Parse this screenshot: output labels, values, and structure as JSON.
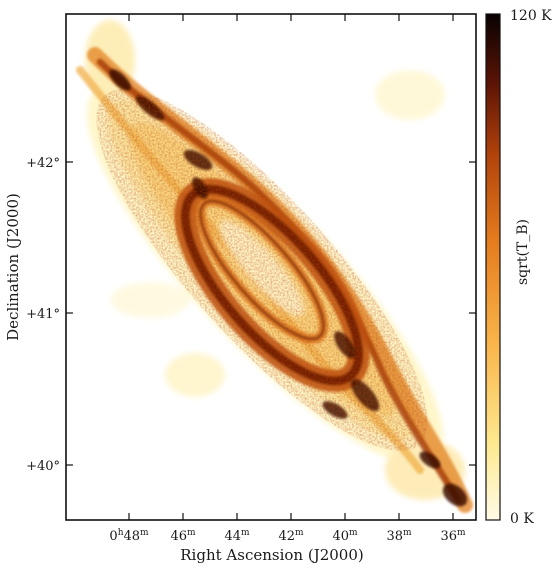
{
  "figure": {
    "image_subject": "Andromeda galaxy (M31) HI brightness temperature map",
    "colormap": [
      "#ffffff",
      "#fff6c8",
      "#fde28a",
      "#f8b14a",
      "#e57b1e",
      "#b8460c",
      "#6e1a06",
      "#2a0704",
      "#0a0202"
    ]
  },
  "axes": {
    "xlabel": "Right Ascension (J2000)",
    "ylabel": "Declination (J2000)",
    "x_ticks": [
      {
        "h": "0",
        "hunit": "h",
        "m": "48",
        "munit": "m"
      },
      {
        "h": "",
        "hunit": "",
        "m": "46",
        "munit": "m"
      },
      {
        "h": "",
        "hunit": "",
        "m": "44",
        "munit": "m"
      },
      {
        "h": "",
        "hunit": "",
        "m": "42",
        "munit": "m"
      },
      {
        "h": "",
        "hunit": "",
        "m": "40",
        "munit": "m"
      },
      {
        "h": "",
        "hunit": "",
        "m": "38",
        "munit": "m"
      },
      {
        "h": "",
        "hunit": "",
        "m": "36",
        "munit": "m"
      }
    ],
    "y_ticks": [
      {
        "label": "+42°"
      },
      {
        "label": "+41°"
      },
      {
        "label": "+40°"
      }
    ]
  },
  "colorbar": {
    "label": "sqrt(T_B)",
    "max_label": "120 K",
    "min_label": "0 K"
  }
}
